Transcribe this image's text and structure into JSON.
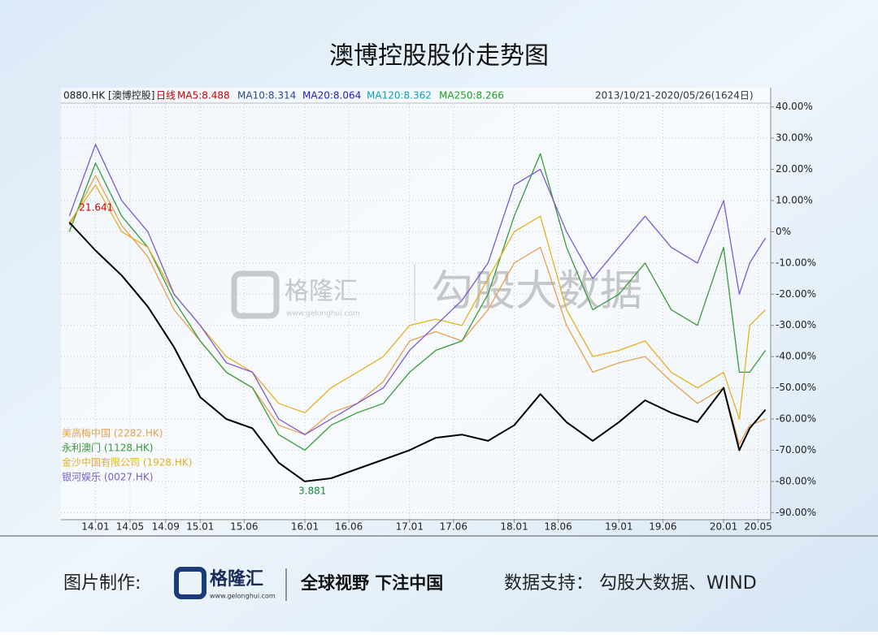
{
  "chart_data": {
    "type": "line",
    "title": "澳博控股股价走势图",
    "header": {
      "code": "0880.HK [澳博控股]",
      "period": "日线",
      "ma5": "MA5:8.488",
      "ma10": "MA10:8.314",
      "ma20": "MA20:8.064",
      "ma120": "MA120:8.362",
      "ma250": "MA250:8.266",
      "range": "2013/10/21-2020/05/26(1624日)"
    },
    "annotations": [
      "21.641",
      "3.881"
    ],
    "x": [
      2013.75,
      2014.0,
      2014.25,
      2014.5,
      2014.75,
      2015.0,
      2015.25,
      2015.5,
      2015.75,
      2016.0,
      2016.25,
      2016.5,
      2016.75,
      2017.0,
      2017.25,
      2017.5,
      2017.75,
      2018.0,
      2018.25,
      2018.5,
      2018.75,
      2019.0,
      2019.25,
      2019.5,
      2019.75,
      2020.0,
      2020.15,
      2020.25,
      2020.4
    ],
    "series": [
      {
        "name": "美高梅中国 (2282.HK)",
        "color": "#e8a050",
        "values": [
          2,
          18,
          2,
          -8,
          -25,
          -35,
          -45,
          -50,
          -62,
          -65,
          -58,
          -55,
          -48,
          -35,
          -32,
          -35,
          -25,
          -10,
          -5,
          -30,
          -45,
          -42,
          -40,
          -48,
          -55,
          -50,
          -68,
          -62,
          -60
        ]
      },
      {
        "name": "永利澳门 (1128.HK)",
        "color": "#3a9a3a",
        "values": [
          0,
          22,
          5,
          -5,
          -22,
          -35,
          -45,
          -50,
          -65,
          -70,
          -62,
          -58,
          -55,
          -45,
          -38,
          -35,
          -20,
          5,
          25,
          -5,
          -25,
          -20,
          -10,
          -25,
          -30,
          -5,
          -45,
          -45,
          -38
        ]
      },
      {
        "name": "金沙中国有限公司 (1928.HK)",
        "color": "#e6b020",
        "values": [
          3,
          15,
          0,
          -5,
          -20,
          -30,
          -40,
          -45,
          -55,
          -58,
          -50,
          -45,
          -40,
          -30,
          -28,
          -30,
          -15,
          0,
          5,
          -25,
          -40,
          -38,
          -35,
          -45,
          -50,
          -45,
          -60,
          -30,
          -25
        ]
      },
      {
        "name": "银河娱乐 (0027.HK)",
        "color": "#7a5ad0",
        "values": [
          5,
          28,
          10,
          0,
          -20,
          -30,
          -42,
          -45,
          -60,
          -65,
          -60,
          -55,
          -50,
          -38,
          -30,
          -22,
          -10,
          15,
          20,
          0,
          -15,
          -5,
          5,
          -5,
          -10,
          10,
          -20,
          -10,
          -2
        ]
      },
      {
        "name": "0880.HK",
        "color": "#000000",
        "values": [
          3,
          -6,
          -14,
          -24,
          -37,
          -53,
          -60,
          -63,
          -74,
          -80,
          -79,
          -76,
          -73,
          -70,
          -66,
          -65,
          -67,
          -62,
          -52,
          -61,
          -67,
          -61,
          -54,
          -58,
          -61,
          -50,
          -70,
          -63,
          -57
        ]
      }
    ],
    "xlim": [
      2013.67,
      2020.45
    ],
    "xticks": [
      {
        "value": 2014.0,
        "label": "14.01"
      },
      {
        "value": 2014.33,
        "label": "14.05"
      },
      {
        "value": 2014.67,
        "label": "14.09"
      },
      {
        "value": 2015.0,
        "label": "15.01"
      },
      {
        "value": 2015.42,
        "label": "15.06"
      },
      {
        "value": 2016.0,
        "label": "16.01"
      },
      {
        "value": 2016.42,
        "label": "16.06"
      },
      {
        "value": 2017.0,
        "label": "17.01"
      },
      {
        "value": 2017.42,
        "label": "17.06"
      },
      {
        "value": 2018.0,
        "label": "18.01"
      },
      {
        "value": 2018.42,
        "label": "18.06"
      },
      {
        "value": 2019.0,
        "label": "19.01"
      },
      {
        "value": 2019.42,
        "label": "19.06"
      },
      {
        "value": 2020.0,
        "label": "20.01"
      },
      {
        "value": 2020.33,
        "label": "20.05"
      }
    ],
    "ylim": [
      -92,
      42
    ],
    "yticks": [
      {
        "value": 40,
        "label": "40.00%"
      },
      {
        "value": 30,
        "label": "30.00%"
      },
      {
        "value": 20,
        "label": "20.00%"
      },
      {
        "value": 10,
        "label": "10.00%"
      },
      {
        "value": 0,
        "label": "0%"
      },
      {
        "value": -10,
        "label": "-10.00%"
      },
      {
        "value": -20,
        "label": "-20.00%"
      },
      {
        "value": -30,
        "label": "-30.00%"
      },
      {
        "value": -40,
        "label": "-40.00%"
      },
      {
        "value": -50,
        "label": "-50.00%"
      },
      {
        "value": -60,
        "label": "-60.00%"
      },
      {
        "value": -70,
        "label": "-70.00%"
      },
      {
        "value": -80,
        "label": "-80.00%"
      },
      {
        "value": -90,
        "label": "-90.00%"
      }
    ],
    "grid": true
  },
  "watermark": {
    "brand": "格隆汇",
    "site": "www.gelonghui.com",
    "partner": "勾股大数据"
  },
  "footer": {
    "made_by": "图片制作:",
    "brand": "格隆汇",
    "site": "www.gelonghui.com",
    "slogan": "全球视野 下注中国",
    "source": "数据支持： 勾股大数据、WIND"
  }
}
